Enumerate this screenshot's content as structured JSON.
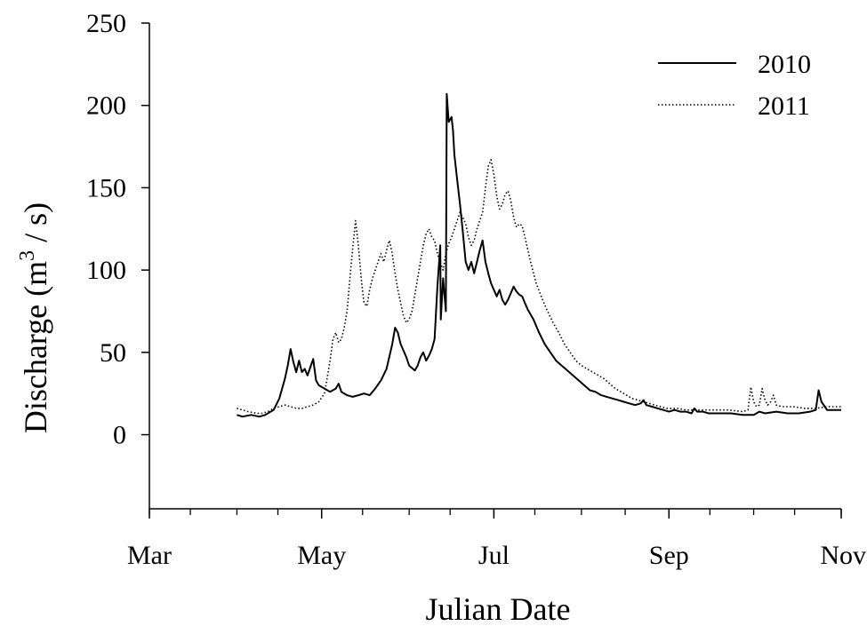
{
  "chart_data": {
    "type": "line",
    "xlabel": "Julian Date",
    "ylabel_main": "Discharge (m",
    "ylabel_sup": "3",
    "ylabel_tail": " / s)",
    "xlim": [
      60,
      305
    ],
    "ylim": [
      -45,
      250
    ],
    "y_ticks": [
      0,
      50,
      100,
      150,
      200,
      250
    ],
    "x_ticks": [
      {
        "value": 60,
        "label": "Mar"
      },
      {
        "value": 121,
        "label": "May"
      },
      {
        "value": 182,
        "label": "Jul"
      },
      {
        "value": 244,
        "label": "Sep"
      },
      {
        "value": 305,
        "label": "Nov"
      }
    ],
    "x_minor_ticks": [
      60,
      74.5,
      91,
      105.5,
      121,
      135.5,
      152,
      166.5,
      182,
      196.5,
      213,
      228.5,
      244,
      258.5,
      274,
      288.5,
      305
    ],
    "legend_position": "top-right",
    "grid": false,
    "series": [
      {
        "name": "2010",
        "style": "solid",
        "color": "#000000",
        "points": [
          [
            91,
            12
          ],
          [
            93,
            11
          ],
          [
            96,
            12
          ],
          [
            99,
            11
          ],
          [
            101,
            12
          ],
          [
            104,
            15
          ],
          [
            106,
            22
          ],
          [
            108,
            34
          ],
          [
            109,
            42
          ],
          [
            110,
            52
          ],
          [
            111,
            44
          ],
          [
            112,
            38
          ],
          [
            113,
            45
          ],
          [
            114,
            38
          ],
          [
            115,
            40
          ],
          [
            116,
            36
          ],
          [
            117,
            41
          ],
          [
            118,
            46
          ],
          [
            119,
            33
          ],
          [
            120,
            30
          ],
          [
            122,
            28
          ],
          [
            124,
            26
          ],
          [
            126,
            28
          ],
          [
            127,
            31
          ],
          [
            128,
            26
          ],
          [
            130,
            24
          ],
          [
            132,
            23
          ],
          [
            134,
            24
          ],
          [
            136,
            25
          ],
          [
            138,
            24
          ],
          [
            140,
            28
          ],
          [
            142,
            33
          ],
          [
            144,
            40
          ],
          [
            146,
            55
          ],
          [
            147,
            65
          ],
          [
            148,
            62
          ],
          [
            149,
            55
          ],
          [
            151,
            47
          ],
          [
            152,
            42
          ],
          [
            154,
            39
          ],
          [
            155,
            42
          ],
          [
            156,
            47
          ],
          [
            157,
            50
          ],
          [
            158,
            45
          ],
          [
            159,
            48
          ],
          [
            160,
            52
          ],
          [
            161,
            58
          ],
          [
            162,
            90
          ],
          [
            163,
            115
          ],
          [
            163.2,
            70
          ],
          [
            164,
            95
          ],
          [
            165,
            75
          ],
          [
            165.3,
            207
          ],
          [
            165.6,
            200
          ],
          [
            166,
            190
          ],
          [
            167,
            193
          ],
          [
            167.5,
            185
          ],
          [
            168,
            170
          ],
          [
            169,
            155
          ],
          [
            170,
            140
          ],
          [
            171,
            123
          ],
          [
            172,
            105
          ],
          [
            173,
            100
          ],
          [
            174,
            105
          ],
          [
            175,
            98
          ],
          [
            176,
            105
          ],
          [
            177,
            112
          ],
          [
            178,
            118
          ],
          [
            179,
            105
          ],
          [
            180,
            98
          ],
          [
            181,
            92
          ],
          [
            182,
            88
          ],
          [
            183,
            84
          ],
          [
            184,
            88
          ],
          [
            185,
            82
          ],
          [
            186,
            79
          ],
          [
            187,
            82
          ],
          [
            188,
            86
          ],
          [
            189,
            90
          ],
          [
            190,
            87
          ],
          [
            191,
            85
          ],
          [
            192,
            84
          ],
          [
            193,
            80
          ],
          [
            194,
            76
          ],
          [
            196,
            70
          ],
          [
            198,
            62
          ],
          [
            200,
            55
          ],
          [
            202,
            50
          ],
          [
            204,
            45
          ],
          [
            206,
            42
          ],
          [
            208,
            39
          ],
          [
            210,
            36
          ],
          [
            212,
            33
          ],
          [
            214,
            30
          ],
          [
            216,
            27
          ],
          [
            218,
            26
          ],
          [
            220,
            24
          ],
          [
            222,
            23
          ],
          [
            224,
            22
          ],
          [
            226,
            21
          ],
          [
            228,
            20
          ],
          [
            230,
            19
          ],
          [
            232,
            18
          ],
          [
            234,
            19
          ],
          [
            235,
            21
          ],
          [
            236,
            18
          ],
          [
            238,
            17
          ],
          [
            240,
            16
          ],
          [
            242,
            15
          ],
          [
            244,
            14
          ],
          [
            246,
            15
          ],
          [
            248,
            14
          ],
          [
            250,
            14
          ],
          [
            252,
            13
          ],
          [
            253,
            16
          ],
          [
            254,
            14
          ],
          [
            256,
            14
          ],
          [
            258,
            13
          ],
          [
            262,
            13
          ],
          [
            266,
            13
          ],
          [
            270,
            12
          ],
          [
            274,
            12
          ],
          [
            276,
            14
          ],
          [
            278,
            13
          ],
          [
            282,
            14
          ],
          [
            286,
            13
          ],
          [
            290,
            13
          ],
          [
            294,
            14
          ],
          [
            296,
            15
          ],
          [
            297,
            27
          ],
          [
            298,
            20
          ],
          [
            300,
            15
          ],
          [
            302,
            15
          ],
          [
            305,
            15
          ]
        ]
      },
      {
        "name": "2011",
        "style": "dotted",
        "color": "#000000",
        "points": [
          [
            91,
            16
          ],
          [
            93,
            15
          ],
          [
            95,
            14
          ],
          [
            98,
            13
          ],
          [
            100,
            13
          ],
          [
            102,
            14
          ],
          [
            104,
            16
          ],
          [
            106,
            17
          ],
          [
            108,
            18
          ],
          [
            110,
            17
          ],
          [
            112,
            16
          ],
          [
            114,
            16
          ],
          [
            116,
            17
          ],
          [
            118,
            18
          ],
          [
            120,
            20
          ],
          [
            122,
            25
          ],
          [
            123,
            35
          ],
          [
            124,
            45
          ],
          [
            125,
            58
          ],
          [
            126,
            62
          ],
          [
            127,
            56
          ],
          [
            128,
            58
          ],
          [
            129,
            65
          ],
          [
            130,
            75
          ],
          [
            131,
            95
          ],
          [
            132,
            113
          ],
          [
            133,
            130
          ],
          [
            134,
            115
          ],
          [
            135,
            95
          ],
          [
            136,
            80
          ],
          [
            137,
            78
          ],
          [
            138,
            88
          ],
          [
            139,
            95
          ],
          [
            140,
            100
          ],
          [
            141,
            105
          ],
          [
            142,
            110
          ],
          [
            143,
            105
          ],
          [
            144,
            112
          ],
          [
            145,
            118
          ],
          [
            146,
            110
          ],
          [
            147,
            98
          ],
          [
            148,
            88
          ],
          [
            149,
            80
          ],
          [
            150,
            72
          ],
          [
            151,
            68
          ],
          [
            152,
            70
          ],
          [
            153,
            75
          ],
          [
            154,
            85
          ],
          [
            155,
            95
          ],
          [
            156,
            105
          ],
          [
            157,
            115
          ],
          [
            158,
            122
          ],
          [
            159,
            125
          ],
          [
            160,
            120
          ],
          [
            161,
            118
          ],
          [
            162,
            110
          ],
          [
            163,
            105
          ],
          [
            164,
            100
          ],
          [
            165,
            110
          ],
          [
            166,
            116
          ],
          [
            167,
            120
          ],
          [
            168,
            125
          ],
          [
            169,
            130
          ],
          [
            170,
            135
          ],
          [
            171,
            132
          ],
          [
            172,
            128
          ],
          [
            173,
            120
          ],
          [
            174,
            115
          ],
          [
            175,
            118
          ],
          [
            176,
            125
          ],
          [
            177,
            130
          ],
          [
            178,
            135
          ],
          [
            179,
            150
          ],
          [
            180,
            163
          ],
          [
            181,
            167
          ],
          [
            182,
            158
          ],
          [
            183,
            145
          ],
          [
            184,
            137
          ],
          [
            185,
            140
          ],
          [
            186,
            146
          ],
          [
            187,
            148
          ],
          [
            188,
            142
          ],
          [
            189,
            132
          ],
          [
            190,
            126
          ],
          [
            191,
            128
          ],
          [
            192,
            127
          ],
          [
            193,
            120
          ],
          [
            195,
            105
          ],
          [
            197,
            92
          ],
          [
            199,
            83
          ],
          [
            201,
            75
          ],
          [
            203,
            68
          ],
          [
            205,
            62
          ],
          [
            207,
            55
          ],
          [
            209,
            50
          ],
          [
            211,
            45
          ],
          [
            213,
            42
          ],
          [
            215,
            40
          ],
          [
            217,
            38
          ],
          [
            219,
            36
          ],
          [
            221,
            34
          ],
          [
            223,
            31
          ],
          [
            225,
            28
          ],
          [
            227,
            26
          ],
          [
            229,
            24
          ],
          [
            231,
            22
          ],
          [
            233,
            21
          ],
          [
            235,
            20
          ],
          [
            237,
            19
          ],
          [
            239,
            18
          ],
          [
            241,
            17
          ],
          [
            243,
            16
          ],
          [
            245,
            16
          ],
          [
            247,
            16
          ],
          [
            250,
            15
          ],
          [
            255,
            15
          ],
          [
            260,
            15
          ],
          [
            265,
            15
          ],
          [
            270,
            14
          ],
          [
            272,
            15
          ],
          [
            273,
            29
          ],
          [
            274,
            20
          ],
          [
            275,
            17
          ],
          [
            276,
            18
          ],
          [
            277,
            28
          ],
          [
            278,
            21
          ],
          [
            279,
            18
          ],
          [
            280,
            20
          ],
          [
            281,
            24
          ],
          [
            282,
            18
          ],
          [
            284,
            17
          ],
          [
            288,
            17
          ],
          [
            292,
            16
          ],
          [
            296,
            16
          ],
          [
            300,
            17
          ],
          [
            305,
            17
          ]
        ]
      }
    ]
  }
}
